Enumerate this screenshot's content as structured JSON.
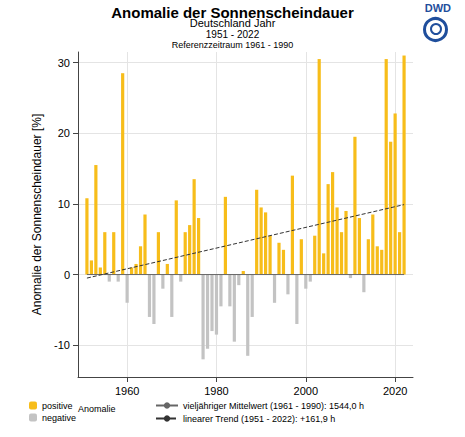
{
  "chart_data": {
    "type": "bar",
    "title": "Anomalie der Sonnenscheindauer",
    "subtitle": "Deutschland Jahr",
    "annotations": [
      "1951 - 2022",
      "Referenzzeitraum 1961 - 1990",
      "Anomalie",
      "DWD"
    ],
    "y_label": "Anomalie der Sonnenscheindauer [%]",
    "x": [
      1951,
      1952,
      1953,
      1954,
      1955,
      1956,
      1957,
      1958,
      1959,
      1960,
      1961,
      1962,
      1963,
      1964,
      1965,
      1966,
      1967,
      1968,
      1969,
      1970,
      1971,
      1972,
      1973,
      1974,
      1975,
      1976,
      1977,
      1978,
      1979,
      1980,
      1981,
      1982,
      1983,
      1984,
      1985,
      1986,
      1987,
      1988,
      1989,
      1990,
      1991,
      1992,
      1993,
      1994,
      1995,
      1996,
      1997,
      1998,
      1999,
      2000,
      2001,
      2002,
      2003,
      2004,
      2005,
      2006,
      2007,
      2008,
      2009,
      2010,
      2011,
      2012,
      2013,
      2014,
      2015,
      2016,
      2017,
      2018,
      2019,
      2020,
      2021,
      2022
    ],
    "series": [
      {
        "name": "positive",
        "type": "bar",
        "color": "#f7bd1a",
        "values": [
          10.8,
          2,
          15.5,
          1,
          6,
          null,
          6,
          null,
          28.5,
          null,
          1,
          1.5,
          4,
          8.5,
          null,
          null,
          6,
          null,
          1.5,
          null,
          10.5,
          null,
          6,
          7,
          13.5,
          8,
          null,
          null,
          null,
          null,
          null,
          11,
          null,
          null,
          null,
          0.5,
          null,
          null,
          12,
          9.5,
          8.8,
          5.5,
          null,
          4.5,
          3.5,
          null,
          14,
          null,
          5,
          null,
          null,
          5.5,
          30.5,
          3,
          12.8,
          14.5,
          9.5,
          6,
          9,
          null,
          19.5,
          8,
          null,
          5,
          8.5,
          4,
          3.5,
          30.5,
          18.8,
          22.8,
          6,
          31
        ]
      },
      {
        "name": "negative",
        "type": "bar",
        "color": "#c3c3c3",
        "values": [
          null,
          null,
          null,
          null,
          null,
          -1,
          null,
          -1,
          null,
          -4,
          null,
          null,
          null,
          null,
          -6,
          -7,
          null,
          -2,
          null,
          -6,
          null,
          -1,
          null,
          null,
          null,
          null,
          -12,
          -10.5,
          -8,
          -8.5,
          -4.5,
          null,
          -4.5,
          -9.5,
          -1.5,
          null,
          -11.5,
          -6,
          null,
          null,
          null,
          null,
          -4,
          null,
          null,
          -2.8,
          null,
          -7,
          null,
          -2,
          -1,
          null,
          null,
          null,
          null,
          null,
          null,
          null,
          null,
          -0.5,
          null,
          null,
          -2.5,
          null,
          null,
          null,
          null,
          null,
          null,
          null,
          null,
          null
        ]
      },
      {
        "name": "vieljähriger Mittelwert (1961 - 1990): 1544,0 h",
        "type": "line",
        "color": "#666666",
        "line_style": "solid",
        "x": [
          1951,
          2022
        ],
        "values": [
          0,
          0
        ]
      },
      {
        "name": "linearer Trend (1951 - 2022): +161,9 h",
        "type": "line",
        "color": "#333333",
        "line_style": "dashed",
        "x": [
          1951,
          2022
        ],
        "values": [
          -0.5,
          9.9
        ]
      }
    ],
    "xlim": [
      1949,
      2024
    ],
    "xticks": [
      1960,
      1980,
      2000,
      2020
    ],
    "ylim": [
      -14.5,
      31.5
    ],
    "yticks": [
      -10,
      0,
      10,
      20,
      30
    ],
    "grid": true
  }
}
